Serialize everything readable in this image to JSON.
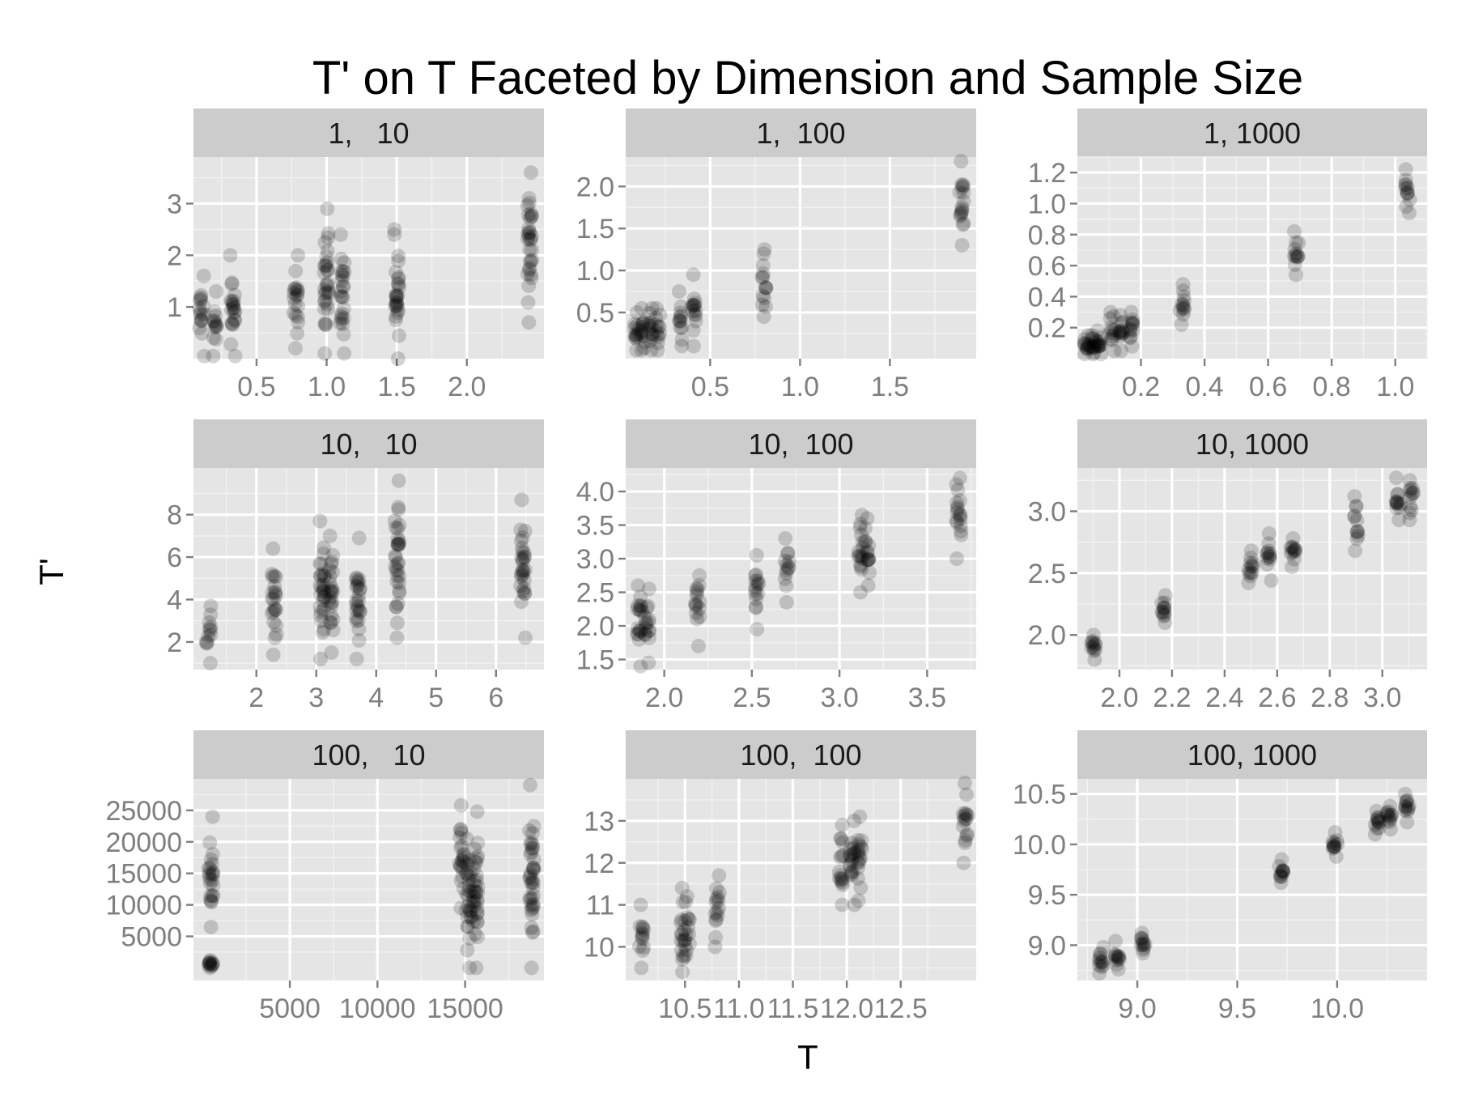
{
  "title": "T' on T Faceted by Dimension and Sample Size",
  "xlabel": "T",
  "ylabel": "T'",
  "chart_data": {
    "type": "scatter",
    "facet_rows": "Dimension",
    "facet_cols": "Sample Size",
    "grid": true,
    "scales": "free",
    "point_color": "#000000",
    "point_alpha": 0.17,
    "panels": [
      {
        "label": "1,   10",
        "xlim": [
          0.05,
          2.55
        ],
        "ylim": [
          0,
          3.9
        ],
        "xticks": [
          0.5,
          1.0,
          1.5,
          2.0
        ],
        "xtick_labels": [
          "0.5",
          "1.0",
          "1.5",
          "2.0"
        ],
        "yticks": [
          1,
          2,
          3
        ],
        "ytick_labels": [
          "1",
          "2",
          "3"
        ],
        "columns": [
          {
            "x": 0.11,
            "ymin": 0.05,
            "ymax": 1.6
          },
          {
            "x": 0.2,
            "ymin": 0.05,
            "ymax": 1.3
          },
          {
            "x": 0.33,
            "ymin": 0.05,
            "ymax": 2.0
          },
          {
            "x": 0.78,
            "ymin": 0.2,
            "ymax": 2.0
          },
          {
            "x": 1.0,
            "ymin": 0.1,
            "ymax": 2.9
          },
          {
            "x": 1.11,
            "ymin": 0.1,
            "ymax": 2.4
          },
          {
            "x": 1.5,
            "ymin": 0.0,
            "ymax": 2.5
          },
          {
            "x": 2.45,
            "ymin": 0.7,
            "ymax": 3.6
          }
        ]
      },
      {
        "label": "1,  100",
        "xlim": [
          0.03,
          1.98
        ],
        "ylim": [
          -0.05,
          2.35
        ],
        "xticks": [
          0.5,
          1.0,
          1.5
        ],
        "xtick_labels": [
          "0.5",
          "1.0",
          "1.5"
        ],
        "yticks": [
          0.5,
          1.0,
          1.5,
          2.0
        ],
        "ytick_labels": [
          "0.5",
          "1.0",
          "1.5",
          "2.0"
        ],
        "columns": [
          {
            "x": 0.09,
            "ymin": 0.05,
            "ymax": 0.5
          },
          {
            "x": 0.13,
            "ymin": 0.05,
            "ymax": 0.55
          },
          {
            "x": 0.17,
            "ymin": 0.05,
            "ymax": 0.55
          },
          {
            "x": 0.21,
            "ymin": 0.05,
            "ymax": 0.55
          },
          {
            "x": 0.33,
            "ymin": 0.1,
            "ymax": 0.75
          },
          {
            "x": 0.41,
            "ymin": 0.1,
            "ymax": 0.95
          },
          {
            "x": 0.8,
            "ymin": 0.45,
            "ymax": 1.25
          },
          {
            "x": 1.9,
            "ymin": 1.3,
            "ymax": 2.3
          }
        ]
      },
      {
        "label": "1, 1000",
        "xlim": [
          0.0,
          1.1
        ],
        "ylim": [
          0.0,
          1.3
        ],
        "xticks": [
          0.2,
          0.4,
          0.6,
          0.8,
          1.0
        ],
        "xtick_labels": [
          "0.2",
          "0.4",
          "0.6",
          "0.8",
          "1.0"
        ],
        "yticks": [
          0.2,
          0.4,
          0.6,
          0.8,
          1.0,
          1.2
        ],
        "ytick_labels": [
          "0.2",
          "0.4",
          "0.6",
          "0.8",
          "1.0",
          "1.2"
        ],
        "columns": [
          {
            "x": 0.03,
            "ymin": 0.03,
            "ymax": 0.15
          },
          {
            "x": 0.05,
            "ymin": 0.03,
            "ymax": 0.15
          },
          {
            "x": 0.07,
            "ymin": 0.03,
            "ymax": 0.18
          },
          {
            "x": 0.11,
            "ymin": 0.05,
            "ymax": 0.3
          },
          {
            "x": 0.14,
            "ymin": 0.05,
            "ymax": 0.28
          },
          {
            "x": 0.17,
            "ymin": 0.08,
            "ymax": 0.3
          },
          {
            "x": 0.33,
            "ymin": 0.22,
            "ymax": 0.48
          },
          {
            "x": 0.69,
            "ymin": 0.54,
            "ymax": 0.82
          },
          {
            "x": 1.04,
            "ymin": 0.94,
            "ymax": 1.22
          }
        ]
      },
      {
        "label": "10,   10",
        "xlim": [
          0.95,
          6.8
        ],
        "ylim": [
          0.7,
          10.2
        ],
        "xticks": [
          2,
          3,
          4,
          5,
          6
        ],
        "xtick_labels": [
          "2",
          "3",
          "4",
          "5",
          "6"
        ],
        "yticks": [
          2,
          4,
          6,
          8
        ],
        "ytick_labels": [
          "2",
          "4",
          "6",
          "8"
        ],
        "columns": [
          {
            "x": 1.2,
            "ymin": 1.0,
            "ymax": 3.7
          },
          {
            "x": 2.3,
            "ymin": 1.4,
            "ymax": 6.4
          },
          {
            "x": 3.1,
            "ymin": 1.2,
            "ymax": 7.7
          },
          {
            "x": 3.25,
            "ymin": 1.5,
            "ymax": 7.0
          },
          {
            "x": 3.7,
            "ymin": 1.2,
            "ymax": 6.9
          },
          {
            "x": 4.35,
            "ymin": 2.2,
            "ymax": 9.6
          },
          {
            "x": 6.45,
            "ymin": 2.2,
            "ymax": 8.7
          }
        ]
      },
      {
        "label": "10,  100",
        "xlim": [
          1.78,
          3.78
        ],
        "ylim": [
          1.35,
          4.35
        ],
        "xticks": [
          2.0,
          2.5,
          3.0,
          3.5
        ],
        "xtick_labels": [
          "2.0",
          "2.5",
          "3.0",
          "3.5"
        ],
        "yticks": [
          1.5,
          2.0,
          2.5,
          3.0,
          3.5,
          4.0
        ],
        "ytick_labels": [
          "1.5",
          "2.0",
          "2.5",
          "3.0",
          "3.5",
          "4.0"
        ],
        "columns": [
          {
            "x": 1.86,
            "ymin": 1.4,
            "ymax": 2.6
          },
          {
            "x": 1.9,
            "ymin": 1.45,
            "ymax": 2.55
          },
          {
            "x": 2.19,
            "ymin": 1.7,
            "ymax": 2.75
          },
          {
            "x": 2.53,
            "ymin": 1.95,
            "ymax": 3.05
          },
          {
            "x": 2.7,
            "ymin": 2.35,
            "ymax": 3.3
          },
          {
            "x": 3.12,
            "ymin": 2.5,
            "ymax": 3.65
          },
          {
            "x": 3.16,
            "ymin": 2.6,
            "ymax": 3.6
          },
          {
            "x": 3.68,
            "ymin": 3.0,
            "ymax": 4.2
          }
        ]
      },
      {
        "label": "10, 1000",
        "xlim": [
          1.84,
          3.17
        ],
        "ylim": [
          1.72,
          3.35
        ],
        "xticks": [
          2.0,
          2.2,
          2.4,
          2.6,
          2.8,
          3.0
        ],
        "xtick_labels": [
          "2.0",
          "2.2",
          "2.4",
          "2.6",
          "2.8",
          "3.0"
        ],
        "yticks": [
          2.0,
          2.5,
          3.0
        ],
        "ytick_labels": [
          "2.0",
          "2.5",
          "3.0"
        ],
        "columns": [
          {
            "x": 1.9,
            "ymin": 1.8,
            "ymax": 2.0
          },
          {
            "x": 2.17,
            "ymin": 2.1,
            "ymax": 2.32
          },
          {
            "x": 2.5,
            "ymin": 2.42,
            "ymax": 2.68
          },
          {
            "x": 2.57,
            "ymin": 2.44,
            "ymax": 2.82
          },
          {
            "x": 2.66,
            "ymin": 2.55,
            "ymax": 2.78
          },
          {
            "x": 2.9,
            "ymin": 2.68,
            "ymax": 3.12
          },
          {
            "x": 3.06,
            "ymin": 2.93,
            "ymax": 3.27
          },
          {
            "x": 3.11,
            "ymin": 2.93,
            "ymax": 3.25
          }
        ]
      },
      {
        "label": "100,   10",
        "xlim": [
          -500,
          19500
        ],
        "ylim": [
          -2000,
          30000
        ],
        "xticks": [
          5000,
          10000,
          15000
        ],
        "xtick_labels": [
          "5000",
          "10000",
          "15000"
        ],
        "yticks": [
          5000,
          10000,
          15000,
          20000,
          25000
        ],
        "ytick_labels": [
          "5000",
          "10000",
          "15000",
          "20000",
          "25000"
        ],
        "columns": [
          {
            "x": 500,
            "ymin": 6500,
            "ymax": 24000
          },
          {
            "x": 500,
            "ymin": 0,
            "ymax": 1200
          },
          {
            "x": 14800,
            "ymin": 9500,
            "ymax": 25800
          },
          {
            "x": 15200,
            "ymin": 0,
            "ymax": 20500
          },
          {
            "x": 15600,
            "ymin": 0,
            "ymax": 24800
          },
          {
            "x": 18800,
            "ymin": 0,
            "ymax": 29000
          }
        ]
      },
      {
        "label": "100,  100",
        "xlim": [
          9.95,
          13.2
        ],
        "ylim": [
          9.2,
          14.0
        ],
        "xticks": [
          10.5,
          11.0,
          11.5,
          12.0,
          12.5
        ],
        "xtick_labels": [
          "10.5",
          "11.0",
          "11.5",
          "12.0",
          "12.5"
        ],
        "yticks": [
          10,
          11,
          12,
          13
        ],
        "ytick_labels": [
          "10",
          "11",
          "12",
          "13"
        ],
        "columns": [
          {
            "x": 10.1,
            "ymin": 9.5,
            "ymax": 11.0
          },
          {
            "x": 10.48,
            "ymin": 9.4,
            "ymax": 11.4
          },
          {
            "x": 10.52,
            "ymin": 9.8,
            "ymax": 11.2
          },
          {
            "x": 10.8,
            "ymin": 10.0,
            "ymax": 11.7
          },
          {
            "x": 11.95,
            "ymin": 11.0,
            "ymax": 12.9
          },
          {
            "x": 12.05,
            "ymin": 11.0,
            "ymax": 13.0
          },
          {
            "x": 12.12,
            "ymin": 11.1,
            "ymax": 13.1
          },
          {
            "x": 13.1,
            "ymin": 12.0,
            "ymax": 13.9
          }
        ]
      },
      {
        "label": "100, 1000",
        "xlim": [
          8.7,
          10.45
        ],
        "ylim": [
          8.65,
          10.65
        ],
        "xticks": [
          9.0,
          9.5,
          10.0
        ],
        "xtick_labels": [
          "9.0",
          "9.5",
          "10.0"
        ],
        "yticks": [
          9.0,
          9.5,
          10.0,
          10.5
        ],
        "ytick_labels": [
          "9.0",
          "9.5",
          "10.0",
          "10.5"
        ],
        "columns": [
          {
            "x": 8.82,
            "ymin": 8.72,
            "ymax": 8.98
          },
          {
            "x": 8.9,
            "ymin": 8.76,
            "ymax": 9.04
          },
          {
            "x": 9.03,
            "ymin": 8.92,
            "ymax": 9.12
          },
          {
            "x": 9.72,
            "ymin": 9.62,
            "ymax": 9.85
          },
          {
            "x": 9.99,
            "ymin": 9.88,
            "ymax": 10.12
          },
          {
            "x": 10.2,
            "ymin": 10.1,
            "ymax": 10.33
          },
          {
            "x": 10.26,
            "ymin": 10.15,
            "ymax": 10.38
          },
          {
            "x": 10.35,
            "ymin": 10.22,
            "ymax": 10.5
          }
        ]
      }
    ]
  }
}
